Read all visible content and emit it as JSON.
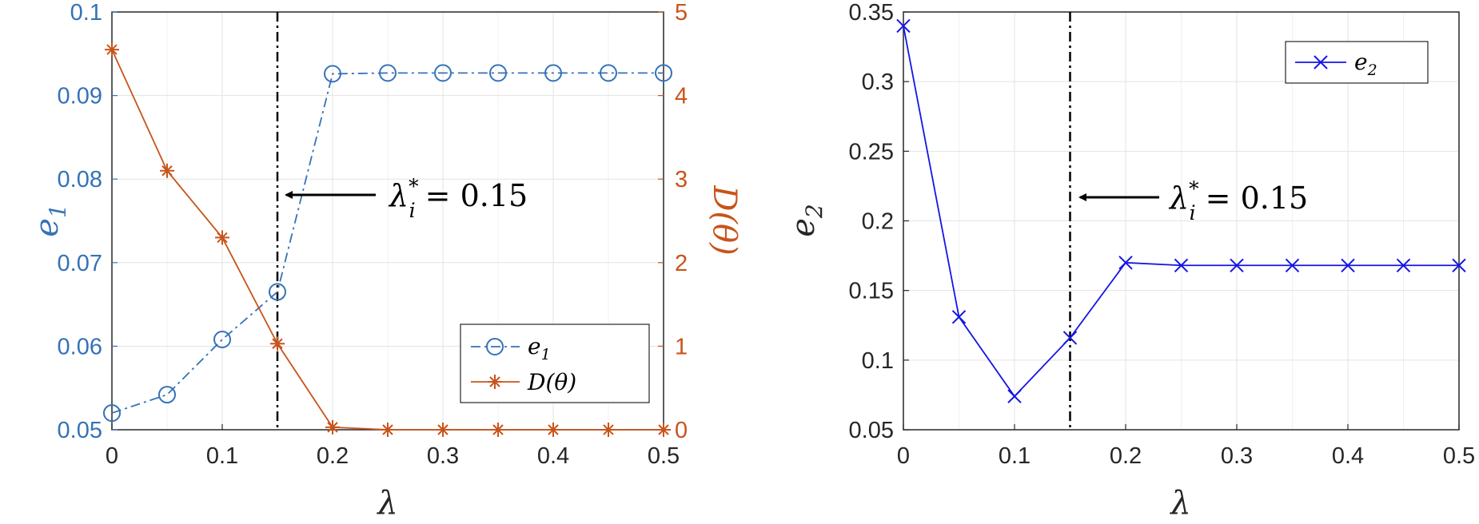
{
  "chart_data": [
    {
      "type": "line",
      "x": [
        0,
        0.05,
        0.1,
        0.15,
        0.2,
        0.25,
        0.3,
        0.35,
        0.4,
        0.45,
        0.5
      ],
      "xlim": [
        0,
        0.5
      ],
      "xticks": [
        "0",
        "0.1",
        "0.2",
        "0.3",
        "0.4",
        "0.5"
      ],
      "xlabel": "λ",
      "ylabel_left": "e1",
      "ylabel_left_base": "e",
      "ylabel_left_sub": "1",
      "ylim_left": [
        0.05,
        0.1
      ],
      "yticks_left": [
        "0.05",
        "0.06",
        "0.07",
        "0.08",
        "0.09",
        "0.1"
      ],
      "ylabel_right": "D(θ)",
      "ylim_right": [
        0,
        5
      ],
      "yticks_right": [
        "0",
        "1",
        "2",
        "3",
        "4",
        "5"
      ],
      "grid": true,
      "legend_position": "bottom-right",
      "series": [
        {
          "name": "e1",
          "name_base": "e",
          "name_sub": "1",
          "axis": "left",
          "marker": "circle",
          "line_style": "dash-dot",
          "color": "#3572B8",
          "values": [
            0.052,
            0.0542,
            0.0608,
            0.0665,
            0.0926,
            0.0927,
            0.0927,
            0.0927,
            0.0927,
            0.0927,
            0.0927
          ]
        },
        {
          "name": "D(θ)",
          "axis": "right",
          "marker": "asterisk",
          "line_style": "solid",
          "color": "#C8541B",
          "values": [
            4.55,
            3.1,
            2.3,
            1.03,
            0.03,
            0.0,
            0.0,
            0.0,
            0.0,
            0.0,
            0.0
          ]
        }
      ],
      "reference_line": {
        "x": 0.15,
        "style": "dash-dot",
        "color": "#000000"
      },
      "annotation": {
        "text": "λ*i = 0.15",
        "base": "λ",
        "sup": "*",
        "sub": "i",
        "tail": " = 0.15"
      }
    },
    {
      "type": "line",
      "x": [
        0,
        0.05,
        0.1,
        0.15,
        0.2,
        0.25,
        0.3,
        0.35,
        0.4,
        0.45,
        0.5
      ],
      "xlim": [
        0,
        0.5
      ],
      "xticks": [
        "0",
        "0.1",
        "0.2",
        "0.3",
        "0.4",
        "0.5"
      ],
      "xlabel": "λ",
      "ylabel": "e2",
      "ylabel_base": "e",
      "ylabel_sub": "2",
      "ylim": [
        0.05,
        0.35
      ],
      "yticks": [
        "0.05",
        "0.1",
        "0.15",
        "0.2",
        "0.25",
        "0.3",
        "0.35"
      ],
      "grid": true,
      "legend_position": "top-right",
      "series": [
        {
          "name": "e2",
          "name_base": "e",
          "name_sub": "2",
          "marker": "x",
          "line_style": "solid",
          "color": "#1515E6",
          "values": [
            0.34,
            0.131,
            0.074,
            0.116,
            0.17,
            0.168,
            0.168,
            0.168,
            0.168,
            0.168,
            0.168
          ]
        }
      ],
      "reference_line": {
        "x": 0.15,
        "style": "dash-dot",
        "color": "#000000"
      },
      "annotation": {
        "text": "λ*i = 0.15",
        "base": "λ",
        "sup": "*",
        "sub": "i",
        "tail": " = 0.15"
      }
    }
  ]
}
